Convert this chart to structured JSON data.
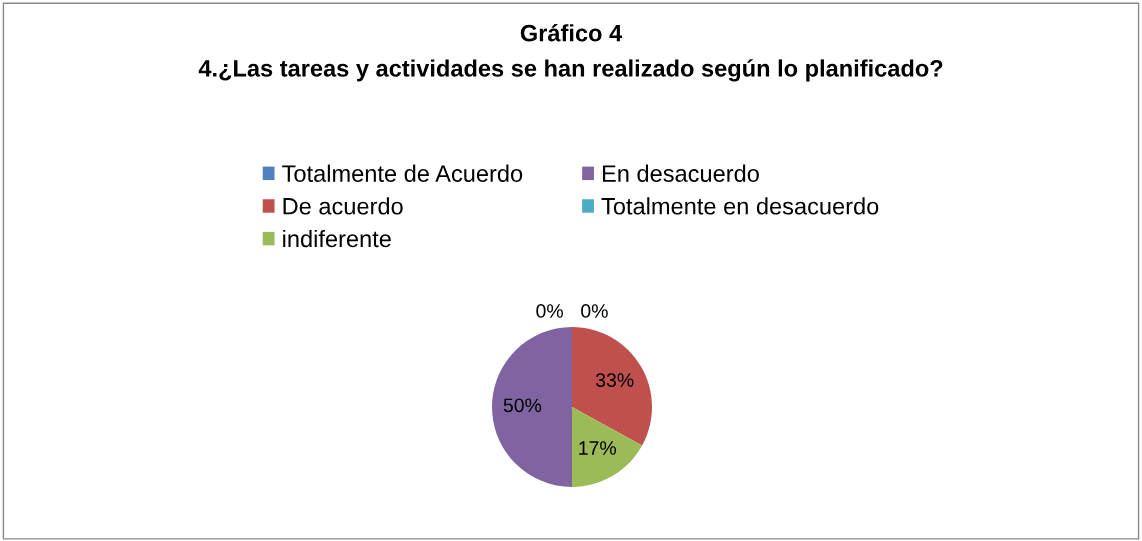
{
  "chart_data": {
    "type": "pie",
    "title": "Gráfico 4",
    "subtitle": "4.¿Las tareas y actividades se han realizado según lo planificado?",
    "categories": [
      "Totalmente de Acuerdo",
      "De acuerdo",
      "indiferente",
      "En desacuerdo",
      "Totalmente en desacuerdo"
    ],
    "values": [
      0,
      33,
      17,
      50,
      0
    ],
    "colors": [
      "#4f81bd",
      "#c0504d",
      "#9bbb59",
      "#8064a2",
      "#4bacc6"
    ],
    "value_labels": [
      "0%",
      "33%",
      "17%",
      "50%",
      "0%"
    ],
    "legend": "top"
  }
}
